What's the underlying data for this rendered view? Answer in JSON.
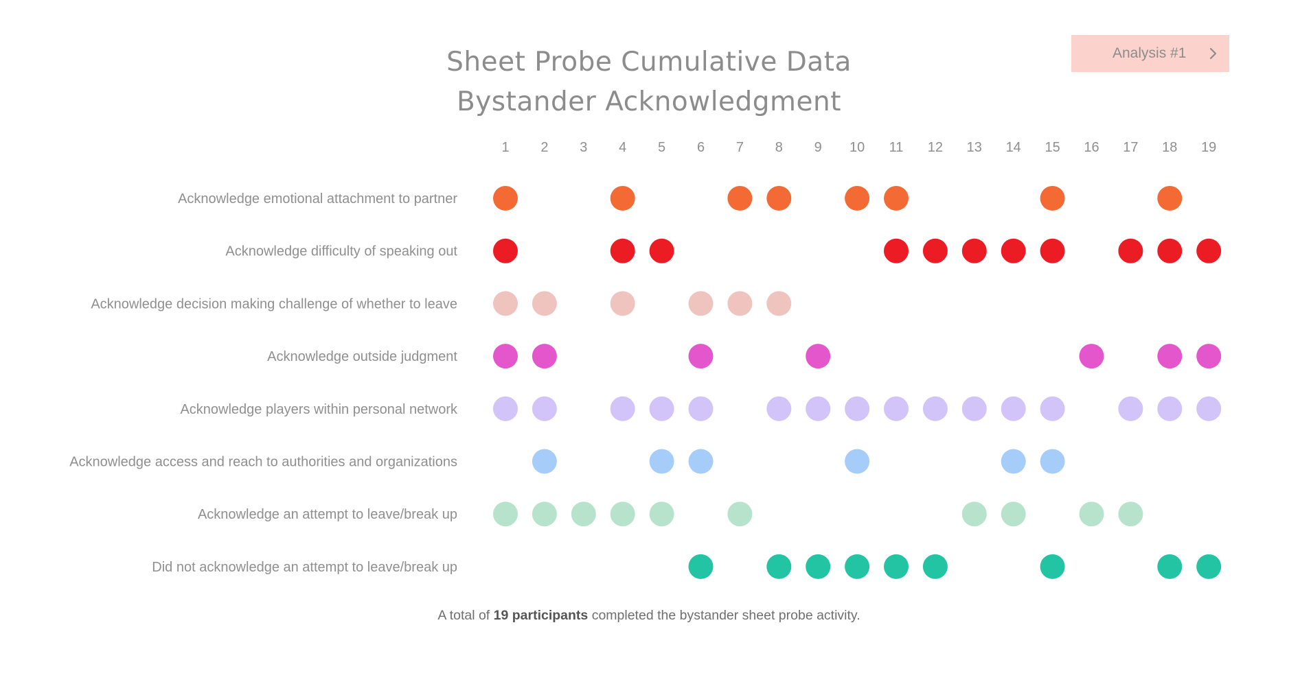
{
  "analysis_button": {
    "label": "Analysis #1",
    "icon": "chevron-right-icon"
  },
  "footnote": {
    "prefix": "A total of ",
    "emphasis": "19 participants",
    "suffix": " completed the bystander sheet probe activity."
  },
  "chart_data": {
    "type": "scatter",
    "title": "Sheet Probe Cumulative Data",
    "subtitle": "Bystander Acknowledgment",
    "x": [
      1,
      2,
      3,
      4,
      5,
      6,
      7,
      8,
      9,
      10,
      11,
      12,
      13,
      14,
      15,
      16,
      17,
      18,
      19
    ],
    "grid": false,
    "series": [
      {
        "name": "Acknowledge emotional attachment to partner",
        "color": "#f46a35",
        "x": [
          1,
          4,
          7,
          8,
          10,
          11,
          15,
          18
        ]
      },
      {
        "name": "Acknowledge difficulty of speaking out",
        "color": "#ec1c24",
        "x": [
          1,
          4,
          5,
          11,
          12,
          13,
          14,
          15,
          17,
          18,
          19
        ]
      },
      {
        "name": "Acknowledge decision making challenge of whether to leave",
        "color": "#f0c4be",
        "x": [
          1,
          2,
          4,
          6,
          7,
          8
        ]
      },
      {
        "name": "Acknowledge outside judgment",
        "color": "#e457cc",
        "x": [
          1,
          2,
          6,
          9,
          16,
          18,
          19
        ]
      },
      {
        "name": "Acknowledge players within personal network",
        "color": "#d2c4f8",
        "x": [
          1,
          2,
          4,
          5,
          6,
          8,
          9,
          10,
          11,
          12,
          13,
          14,
          15,
          17,
          18,
          19
        ]
      },
      {
        "name": "Acknowledge access and reach to authorities and organizations",
        "color": "#a6cdfa",
        "x": [
          2,
          5,
          6,
          10,
          14,
          15
        ]
      },
      {
        "name": "Acknowledge an attempt to leave/break up",
        "color": "#b7e2cc",
        "x": [
          1,
          2,
          3,
          4,
          5,
          7,
          13,
          14,
          16,
          17
        ]
      },
      {
        "name": "Did not acknowledge an attempt to leave/break up",
        "color": "#22c4a3",
        "x": [
          6,
          8,
          9,
          10,
          11,
          12,
          15,
          18,
          19
        ]
      }
    ]
  }
}
